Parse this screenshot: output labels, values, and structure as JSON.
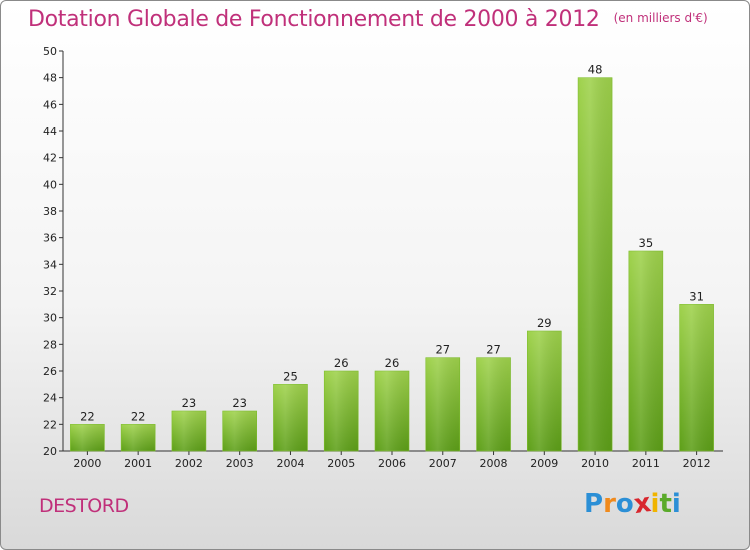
{
  "header": {
    "title": "Dotation Globale de Fonctionnement de 2000 à 2012",
    "subtitle": "(en milliers d'€)"
  },
  "footer": {
    "commune": "DESTORD",
    "logo_text": "Proxiti",
    "logo_letters": [
      {
        "char": "P",
        "color": "#2b8fd6"
      },
      {
        "char": "r",
        "color": "#f08a1c"
      },
      {
        "char": "o",
        "color": "#2b8fd6"
      },
      {
        "char": "x",
        "color": "#d8262d"
      },
      {
        "char": "i",
        "color": "#f0b400"
      },
      {
        "char": "t",
        "color": "#5aaa2a"
      },
      {
        "char": "i",
        "color": "#2b8fd6"
      }
    ]
  },
  "colors": {
    "bar_top": "#9fd24c",
    "bar_bottom": "#5d9f18",
    "title": "#c0307a"
  },
  "chart_data": {
    "type": "bar",
    "title": "Dotation Globale de Fonctionnement de 2000 à 2012",
    "subtitle": "(en milliers d'€)",
    "xlabel": "",
    "ylabel": "",
    "categories": [
      "2000",
      "2001",
      "2002",
      "2003",
      "2004",
      "2005",
      "2006",
      "2007",
      "2008",
      "2009",
      "2010",
      "2011",
      "2012"
    ],
    "values": [
      22,
      22,
      23,
      23,
      25,
      26,
      26,
      27,
      27,
      29,
      48,
      35,
      31
    ],
    "ylim": [
      20,
      50
    ],
    "yticks": [
      20,
      22,
      24,
      26,
      28,
      30,
      32,
      34,
      36,
      38,
      40,
      42,
      44,
      46,
      48,
      50
    ],
    "grid": false,
    "legend": "none"
  }
}
